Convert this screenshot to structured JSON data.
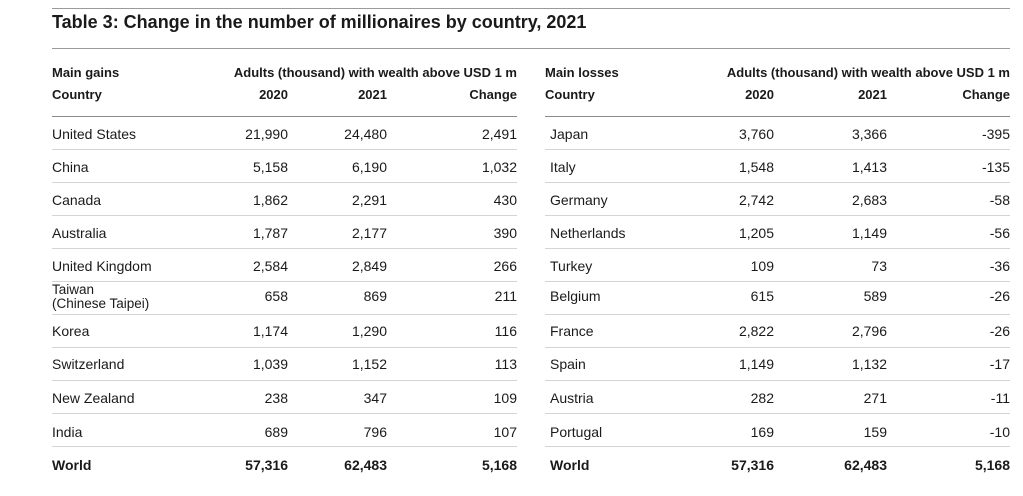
{
  "title": "Table 3: Change in the number of millionaires by country, 2021",
  "left": {
    "section_label": "Main gains",
    "country_label": "Country",
    "group_header": "Adults (thousand) with wealth above USD 1 m",
    "cols": [
      "2020",
      "2021",
      "Change"
    ],
    "rows": [
      {
        "country": "United States",
        "y2020": "21,990",
        "y2021": "24,480",
        "change": "2,491"
      },
      {
        "country": "China",
        "y2020": "5,158",
        "y2021": "6,190",
        "change": "1,032"
      },
      {
        "country": "Canada",
        "y2020": "1,862",
        "y2021": "2,291",
        "change": "430"
      },
      {
        "country": "Australia",
        "y2020": "1,787",
        "y2021": "2,177",
        "change": "390"
      },
      {
        "country": "United Kingdom",
        "y2020": "2,584",
        "y2021": "2,849",
        "change": "266"
      },
      {
        "country": "Taiwan",
        "country2": "(Chinese Taipei)",
        "y2020": "658",
        "y2021": "869",
        "change": "211"
      },
      {
        "country": "Korea",
        "y2020": "1,174",
        "y2021": "1,290",
        "change": "116"
      },
      {
        "country": "Switzerland",
        "y2020": "1,039",
        "y2021": "1,152",
        "change": "113"
      },
      {
        "country": "New Zealand",
        "y2020": "238",
        "y2021": "347",
        "change": "109"
      },
      {
        "country": "India",
        "y2020": "689",
        "y2021": "796",
        "change": "107"
      }
    ],
    "total": {
      "country": "World",
      "y2020": "57,316",
      "y2021": "62,483",
      "change": "5,168"
    }
  },
  "right": {
    "section_label": "Main losses",
    "country_label": "Country",
    "group_header": "Adults (thousand) with wealth above USD 1 m",
    "cols": [
      "2020",
      "2021",
      "Change"
    ],
    "rows": [
      {
        "country": "Japan",
        "y2020": "3,760",
        "y2021": "3,366",
        "change": "-395"
      },
      {
        "country": "Italy",
        "y2020": "1,548",
        "y2021": "1,413",
        "change": "-135"
      },
      {
        "country": "Germany",
        "y2020": "2,742",
        "y2021": "2,683",
        "change": "-58"
      },
      {
        "country": "Netherlands",
        "y2020": "1,205",
        "y2021": "1,149",
        "change": "-56"
      },
      {
        "country": "Turkey",
        "y2020": "109",
        "y2021": "73",
        "change": "-36"
      },
      {
        "country": "Belgium",
        "y2020": "615",
        "y2021": "589",
        "change": "-26"
      },
      {
        "country": "France",
        "y2020": "2,822",
        "y2021": "2,796",
        "change": "-26"
      },
      {
        "country": "Spain",
        "y2020": "1,149",
        "y2021": "1,132",
        "change": "-17"
      },
      {
        "country": "Austria",
        "y2020": "282",
        "y2021": "271",
        "change": "-11"
      },
      {
        "country": "Portugal",
        "y2020": "169",
        "y2021": "159",
        "change": "-10"
      }
    ],
    "total": {
      "country": "World",
      "y2020": "57,316",
      "y2021": "62,483",
      "change": "5,168"
    }
  }
}
